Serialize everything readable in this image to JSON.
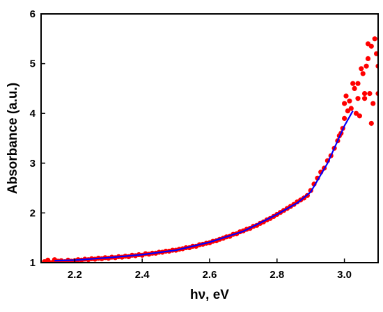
{
  "chart_data": {
    "type": "scatter",
    "xlabel": "hν, eV",
    "ylabel": "Absorbance (a.u.)",
    "xlim": [
      2.1,
      3.1
    ],
    "ylim": [
      1,
      6
    ],
    "x_ticks": [
      "2.2",
      "2.4",
      "2.6",
      "2.8",
      "3.0"
    ],
    "y_ticks": [
      "1",
      "2",
      "3",
      "4",
      "5",
      "6"
    ],
    "grid": false,
    "legend": "none",
    "series": [
      {
        "kind": "scatter",
        "color": "#ff0000",
        "points": [
          [
            2.11,
            1.02
          ],
          [
            2.12,
            1.05
          ],
          [
            2.13,
            1.0
          ],
          [
            2.14,
            1.06
          ],
          [
            2.15,
            1.03
          ],
          [
            2.16,
            1.04
          ],
          [
            2.17,
            1.02
          ],
          [
            2.18,
            1.05
          ],
          [
            2.19,
            1.03
          ],
          [
            2.2,
            1.04
          ],
          [
            2.21,
            1.06
          ],
          [
            2.22,
            1.05
          ],
          [
            2.23,
            1.07
          ],
          [
            2.24,
            1.06
          ],
          [
            2.25,
            1.08
          ],
          [
            2.26,
            1.07
          ],
          [
            2.27,
            1.09
          ],
          [
            2.28,
            1.08
          ],
          [
            2.29,
            1.1
          ],
          [
            2.3,
            1.09
          ],
          [
            2.31,
            1.11
          ],
          [
            2.32,
            1.1
          ],
          [
            2.33,
            1.12
          ],
          [
            2.34,
            1.11
          ],
          [
            2.35,
            1.13
          ],
          [
            2.36,
            1.12
          ],
          [
            2.37,
            1.15
          ],
          [
            2.38,
            1.14
          ],
          [
            2.39,
            1.16
          ],
          [
            2.4,
            1.15
          ],
          [
            2.41,
            1.18
          ],
          [
            2.42,
            1.17
          ],
          [
            2.43,
            1.19
          ],
          [
            2.44,
            1.19
          ],
          [
            2.45,
            1.21
          ],
          [
            2.46,
            1.21
          ],
          [
            2.47,
            1.23
          ],
          [
            2.48,
            1.23
          ],
          [
            2.49,
            1.25
          ],
          [
            2.5,
            1.25
          ],
          [
            2.51,
            1.27
          ],
          [
            2.52,
            1.28
          ],
          [
            2.53,
            1.3
          ],
          [
            2.54,
            1.3
          ],
          [
            2.55,
            1.33
          ],
          [
            2.56,
            1.33
          ],
          [
            2.57,
            1.36
          ],
          [
            2.58,
            1.37
          ],
          [
            2.59,
            1.39
          ],
          [
            2.6,
            1.4
          ],
          [
            2.61,
            1.43
          ],
          [
            2.62,
            1.44
          ],
          [
            2.63,
            1.47
          ],
          [
            2.64,
            1.49
          ],
          [
            2.65,
            1.52
          ],
          [
            2.66,
            1.53
          ],
          [
            2.67,
            1.57
          ],
          [
            2.68,
            1.58
          ],
          [
            2.69,
            1.62
          ],
          [
            2.7,
            1.64
          ],
          [
            2.71,
            1.67
          ],
          [
            2.72,
            1.69
          ],
          [
            2.73,
            1.73
          ],
          [
            2.74,
            1.75
          ],
          [
            2.75,
            1.79
          ],
          [
            2.76,
            1.82
          ],
          [
            2.77,
            1.86
          ],
          [
            2.78,
            1.89
          ],
          [
            2.79,
            1.93
          ],
          [
            2.8,
            1.97
          ],
          [
            2.81,
            2.01
          ],
          [
            2.82,
            2.05
          ],
          [
            2.83,
            2.09
          ],
          [
            2.84,
            2.13
          ],
          [
            2.85,
            2.17
          ],
          [
            2.86,
            2.22
          ],
          [
            2.87,
            2.26
          ],
          [
            2.88,
            2.3
          ],
          [
            2.89,
            2.35
          ],
          [
            2.9,
            2.45
          ],
          [
            2.91,
            2.58
          ],
          [
            2.92,
            2.7
          ],
          [
            2.93,
            2.82
          ],
          [
            2.94,
            2.9
          ],
          [
            2.95,
            3.05
          ],
          [
            2.96,
            3.15
          ],
          [
            2.97,
            3.3
          ],
          [
            2.98,
            3.45
          ],
          [
            2.985,
            3.55
          ],
          [
            2.99,
            3.6
          ],
          [
            2.995,
            3.7
          ],
          [
            3.0,
            3.9
          ],
          [
            3.0,
            4.2
          ],
          [
            3.005,
            4.35
          ],
          [
            3.01,
            4.05
          ],
          [
            3.015,
            4.25
          ],
          [
            3.02,
            4.1
          ],
          [
            3.025,
            4.6
          ],
          [
            3.03,
            4.5
          ],
          [
            3.035,
            4.0
          ],
          [
            3.04,
            4.3
          ],
          [
            3.045,
            3.95
          ],
          [
            3.05,
            4.9
          ],
          [
            3.055,
            4.8
          ],
          [
            3.06,
            4.3
          ],
          [
            3.065,
            4.95
          ],
          [
            3.07,
            5.1
          ],
          [
            3.075,
            4.4
          ],
          [
            3.08,
            5.35
          ],
          [
            3.085,
            4.2
          ],
          [
            3.09,
            5.5
          ],
          [
            3.095,
            5.2
          ],
          [
            3.1,
            4.4
          ],
          [
            3.1,
            4.95
          ],
          [
            3.08,
            3.8
          ],
          [
            3.07,
            5.4
          ],
          [
            3.06,
            4.4
          ],
          [
            3.04,
            4.6
          ]
        ]
      },
      {
        "kind": "line",
        "color": "#0000ff",
        "points": [
          [
            2.14,
            1.04
          ],
          [
            2.2,
            1.05
          ],
          [
            2.3,
            1.1
          ],
          [
            2.4,
            1.16
          ],
          [
            2.5,
            1.25
          ],
          [
            2.6,
            1.41
          ],
          [
            2.7,
            1.63
          ],
          [
            2.8,
            1.97
          ],
          [
            2.86,
            2.2
          ],
          [
            2.9,
            2.42
          ],
          [
            2.95,
            3.0
          ],
          [
            3.0,
            3.75
          ],
          [
            3.025,
            4.05
          ]
        ]
      }
    ]
  }
}
